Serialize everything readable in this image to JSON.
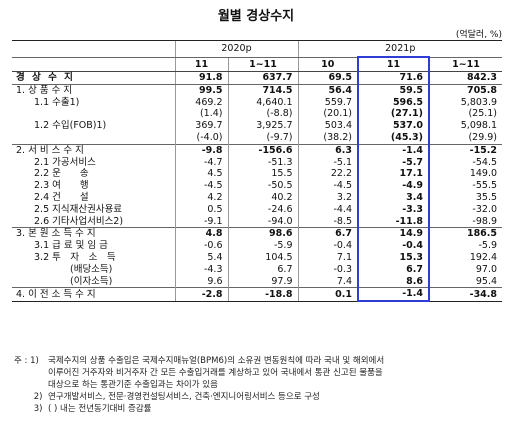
{
  "title": "월별 경상수지",
  "unit": "(억달러, %)",
  "header": {
    "year_2020": "2020p",
    "year_2021": "2021p",
    "cols": [
      "11",
      "1~11",
      "10",
      "11",
      "1~11"
    ]
  },
  "rows": [
    {
      "label": "경 상 수 지",
      "values": [
        "91.8",
        "637.7",
        "69.5",
        "71.6",
        "842.3"
      ],
      "kind": "total"
    },
    {
      "label": "1. 상 품 수 지",
      "values": [
        "99.5",
        "714.5",
        "56.4",
        "59.5",
        "705.8"
      ],
      "kind": "sec"
    },
    {
      "label": "1.1 수출1)",
      "values": [
        "469.2",
        "4,640.1",
        "559.7",
        "596.5",
        "5,803.9"
      ],
      "kind": "sub"
    },
    {
      "label": "",
      "values": [
        "(1.4)",
        "(-8.8)",
        "(20.1)",
        "(27.1)",
        "(25.1)"
      ],
      "kind": "pct"
    },
    {
      "label": "1.2 수입(FOB)1)",
      "values": [
        "369.7",
        "3,925.7",
        "503.4",
        "537.0",
        "5,098.1"
      ],
      "kind": "sub"
    },
    {
      "label": "",
      "values": [
        "(-4.0)",
        "(-9.7)",
        "(38.2)",
        "(45.3)",
        "(29.9)"
      ],
      "kind": "pct"
    },
    {
      "label": "2. 서 비 스 수 지",
      "values": [
        "-9.8",
        "-156.6",
        "6.3",
        "-1.4",
        "-15.2"
      ],
      "kind": "sec"
    },
    {
      "label": "2.1 가공서비스",
      "values": [
        "-4.7",
        "-51.3",
        "-5.1",
        "-5.7",
        "-54.5"
      ],
      "kind": "sub"
    },
    {
      "label": "2.2 운　　송",
      "values": [
        "4.5",
        "15.5",
        "22.2",
        "17.1",
        "149.0"
      ],
      "kind": "sub"
    },
    {
      "label": "2.3 여　　행",
      "values": [
        "-4.5",
        "-50.5",
        "-4.5",
        "-4.9",
        "-55.5"
      ],
      "kind": "sub"
    },
    {
      "label": "2.4 건　　설",
      "values": [
        "4.2",
        "40.2",
        "3.2",
        "3.4",
        "35.5"
      ],
      "kind": "sub"
    },
    {
      "label": "2.5 지식재산권사용료",
      "values": [
        "0.5",
        "-24.6",
        "-4.4",
        "-3.3",
        "-32.0"
      ],
      "kind": "sub"
    },
    {
      "label": "2.6 기타사업서비스2)",
      "values": [
        "-9.1",
        "-94.0",
        "-8.5",
        "-11.8",
        "-98.9"
      ],
      "kind": "sub"
    },
    {
      "label": "3. 본 원 소 득 수 지",
      "values": [
        "4.8",
        "98.6",
        "6.7",
        "14.9",
        "186.5"
      ],
      "kind": "sec"
    },
    {
      "label": "3.1 급 료 및 임 금",
      "values": [
        "-0.6",
        "-5.9",
        "-0.4",
        "-0.4",
        "-5.9"
      ],
      "kind": "sub"
    },
    {
      "label": "3.2 투　자　소　득",
      "values": [
        "5.4",
        "104.5",
        "7.1",
        "15.3",
        "192.4"
      ],
      "kind": "sub"
    },
    {
      "label": "(배당소득)",
      "values": [
        "-4.3",
        "6.7",
        "-0.3",
        "6.7",
        "97.0"
      ],
      "kind": "sub2"
    },
    {
      "label": "(이자소득)",
      "values": [
        "9.6",
        "97.9",
        "7.4",
        "8.6",
        "95.4"
      ],
      "kind": "sub2"
    },
    {
      "label": "4. 이 전 소 득 수 지",
      "values": [
        "-2.8",
        "-18.8",
        "0.1",
        "-1.4",
        "-34.8"
      ],
      "kind": "last"
    }
  ],
  "notes": [
    {
      "mark": "주 : 1)",
      "lines": [
        "국제수지의 상품 수출입은 국제수지매뉴얼(BPM6)의 소유권 변동원칙에 따라 국내 및 해외에서",
        "이루어진 거주자와 비거주자 간 모든 수출입거래를 계상하고 있어 국내에서 통관 신고된 물품을",
        "대상으로 하는 통관기준 수출입과는 차이가 있음"
      ]
    },
    {
      "mark": "　　 2)",
      "lines": [
        "연구개발서비스, 전문·경영컨설팅서비스, 건축·엔지니어링서비스 등으로 구성"
      ]
    },
    {
      "mark": "　　 3)",
      "lines": [
        "( ) 내는 전년동기대비 증감률"
      ]
    }
  ]
}
